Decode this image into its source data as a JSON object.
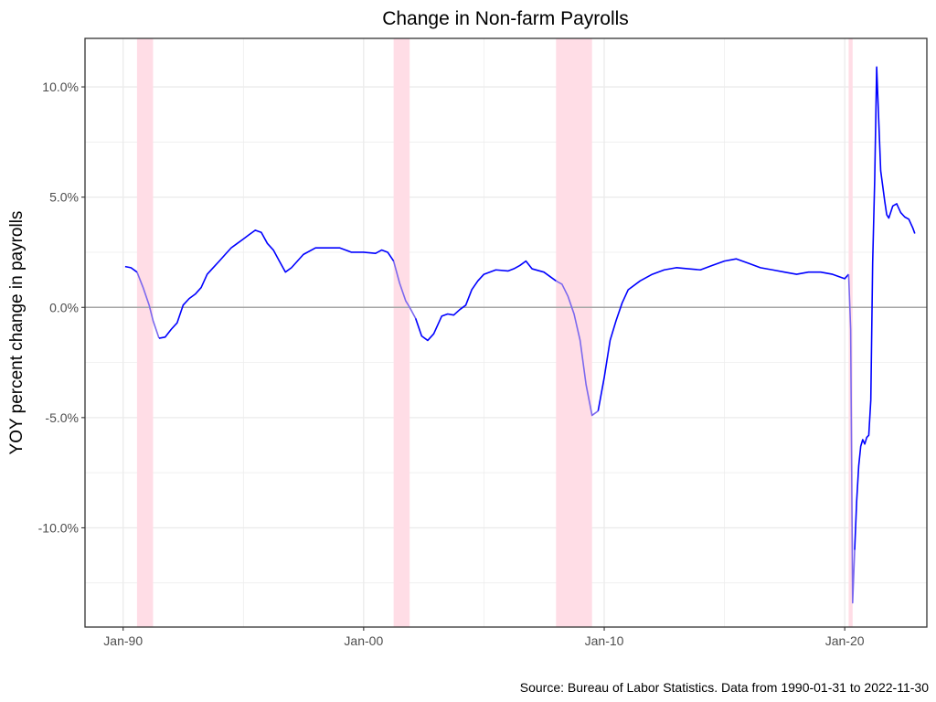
{
  "chart_data": {
    "type": "line",
    "title": "Change in Non-farm Payrolls",
    "xlabel": "",
    "ylabel": "YOY percent change in payrolls",
    "caption": "Source: Bureau of Labor Statistics. Data from 1990-01-31 to 2022-11-30",
    "x_ticks": [
      "Jan-90",
      "Jan-00",
      "Jan-10",
      "Jan-20"
    ],
    "y_ticks": [
      "-10.0%",
      "-5.0%",
      "0.0%",
      "5.0%",
      "10.0%"
    ],
    "xlim": [
      "1988-06-01",
      "2023-06-01"
    ],
    "ylim": [
      -14.5,
      12.2
    ],
    "grid": true,
    "legend": "none",
    "colors": {
      "line": "#0000ff",
      "recession_line": "#7b68ee",
      "recession_band": "#ffdde6",
      "zero_line": "#a6a6a6",
      "grid": "#ebebeb",
      "frame": "#333333"
    },
    "recessions": [
      {
        "start": "1990-07-31",
        "end": "1991-03-31"
      },
      {
        "start": "2001-03-31",
        "end": "2001-11-30"
      },
      {
        "start": "2007-12-31",
        "end": "2009-06-30"
      },
      {
        "start": "2020-02-29",
        "end": "2020-04-30"
      }
    ],
    "series": [
      {
        "x": [
          "1990-01-31",
          "1990-04-30",
          "1990-07-31",
          "1990-10-31",
          "1991-01-31",
          "1991-03-31",
          "1991-06-30",
          "1991-09-30",
          "1991-12-31",
          "1992-03-31",
          "1992-06-30",
          "1992-09-30",
          "1992-12-31",
          "1993-03-31",
          "1993-06-30",
          "1993-09-30",
          "1993-12-31",
          "1994-03-31",
          "1994-06-30",
          "1994-09-30",
          "1994-12-31",
          "1995-03-31",
          "1995-06-30",
          "1995-09-30",
          "1995-12-31",
          "1996-03-31",
          "1996-06-30",
          "1996-09-30",
          "1996-12-31",
          "1997-06-30",
          "1997-12-31",
          "1998-06-30",
          "1998-12-31",
          "1999-06-30",
          "1999-12-31",
          "2000-06-30",
          "2000-09-30",
          "2000-12-31",
          "2001-03-31",
          "2001-06-30",
          "2001-09-30",
          "2001-11-30",
          "2002-02-28",
          "2002-05-31",
          "2002-08-31",
          "2002-11-30",
          "2003-03-31",
          "2003-06-30",
          "2003-09-30",
          "2003-12-31",
          "2004-03-31",
          "2004-06-30",
          "2004-09-30",
          "2004-12-31",
          "2005-06-30",
          "2005-12-31",
          "2006-03-31",
          "2006-06-30",
          "2006-09-30",
          "2006-12-31",
          "2007-06-30",
          "2007-12-31",
          "2008-03-31",
          "2008-06-30",
          "2008-09-30",
          "2008-12-31",
          "2009-03-31",
          "2009-06-30",
          "2009-09-30",
          "2009-12-31",
          "2010-03-31",
          "2010-06-30",
          "2010-09-30",
          "2010-12-31",
          "2011-06-30",
          "2011-12-31",
          "2012-06-30",
          "2012-12-31",
          "2013-06-30",
          "2013-12-31",
          "2014-06-30",
          "2014-12-31",
          "2015-06-30",
          "2015-12-31",
          "2016-06-30",
          "2016-12-31",
          "2017-06-30",
          "2017-12-31",
          "2018-06-30",
          "2018-12-31",
          "2019-06-30",
          "2019-12-31",
          "2020-02-29",
          "2020-03-31",
          "2020-04-30",
          "2020-05-31",
          "2020-06-30",
          "2020-07-31",
          "2020-08-31",
          "2020-09-30",
          "2020-10-31",
          "2020-11-30",
          "2020-12-31",
          "2021-01-31",
          "2021-02-28",
          "2021-03-31",
          "2021-04-30",
          "2021-05-31",
          "2021-06-30",
          "2021-07-31",
          "2021-08-31",
          "2021-09-30",
          "2021-10-31",
          "2021-12-31",
          "2022-02-28",
          "2022-04-30",
          "2022-06-30",
          "2022-08-31",
          "2022-10-31",
          "2022-11-30"
        ],
        "y": [
          1.85,
          1.8,
          1.6,
          0.9,
          0.1,
          -0.6,
          -1.4,
          -1.35,
          -1.0,
          -0.7,
          0.1,
          0.4,
          0.6,
          0.9,
          1.5,
          1.8,
          2.1,
          2.4,
          2.7,
          2.9,
          3.1,
          3.3,
          3.5,
          3.4,
          2.9,
          2.6,
          2.1,
          1.6,
          1.8,
          2.4,
          2.7,
          2.7,
          2.7,
          2.5,
          2.5,
          2.45,
          2.6,
          2.5,
          2.1,
          1.1,
          0.3,
          0.0,
          -0.5,
          -1.3,
          -1.5,
          -1.2,
          -0.4,
          -0.3,
          -0.35,
          -0.1,
          0.1,
          0.8,
          1.2,
          1.5,
          1.7,
          1.65,
          1.75,
          1.9,
          2.1,
          1.75,
          1.6,
          1.2,
          1.05,
          0.5,
          -0.3,
          -1.5,
          -3.5,
          -4.9,
          -4.7,
          -3.2,
          -1.5,
          -0.6,
          0.2,
          0.8,
          1.2,
          1.5,
          1.7,
          1.8,
          1.75,
          1.7,
          1.9,
          2.1,
          2.2,
          2.0,
          1.8,
          1.7,
          1.6,
          1.5,
          1.6,
          1.6,
          1.5,
          1.3,
          1.5,
          -1.0,
          -13.4,
          -11.0,
          -8.8,
          -7.2,
          -6.3,
          -6.0,
          -6.2,
          -5.9,
          -5.8,
          -4.2,
          2.0,
          5.8,
          10.9,
          8.5,
          6.2,
          5.5,
          4.8,
          4.2,
          4.05,
          4.6,
          4.7,
          4.3,
          4.1,
          4.0,
          3.6,
          3.35
        ]
      }
    ]
  }
}
